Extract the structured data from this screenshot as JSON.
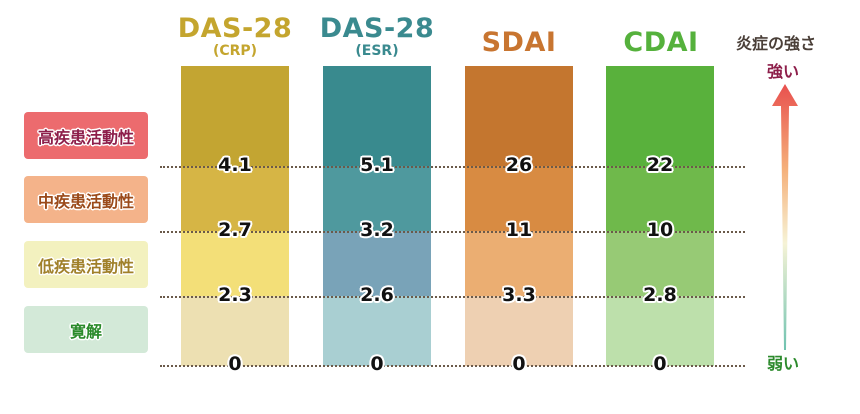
{
  "columns": [
    {
      "title": "DAS-28",
      "subtitle": "(CRP)",
      "title_color": "#c4a52e",
      "thresholds": [
        "4.1",
        "2.7",
        "2.3",
        "0"
      ],
      "segment_colors": [
        "#c3a532",
        "#d6b545",
        "#f3df78",
        "#ede0b2"
      ]
    },
    {
      "title": "DAS-28",
      "subtitle": "(ESR)",
      "title_color": "#3a8a8f",
      "thresholds": [
        "5.1",
        "3.2",
        "2.6",
        "0"
      ],
      "segment_colors": [
        "#398a8e",
        "#4f999e",
        "#79a3b8",
        "#a9cfd2"
      ]
    },
    {
      "title": "SDAI",
      "subtitle": "",
      "title_color": "#c87530",
      "thresholds": [
        "26",
        "11",
        "3.3",
        "0"
      ],
      "segment_colors": [
        "#c4762f",
        "#d88b42",
        "#ebae72",
        "#eed0b2"
      ]
    },
    {
      "title": "CDAI",
      "subtitle": "",
      "title_color": "#55b13c",
      "thresholds": [
        "22",
        "10",
        "2.8",
        "0"
      ],
      "segment_colors": [
        "#59b13c",
        "#6fb94b",
        "#97ca75",
        "#bde0ab"
      ]
    }
  ],
  "categories": [
    {
      "label": "高疾患活動性",
      "bg": "#ec6b6e",
      "color": "#8d1e4a"
    },
    {
      "label": "中疾患活動性",
      "bg": "#f4b38a",
      "color": "#9b4a1a"
    },
    {
      "label": "低疾患活動性",
      "bg": "#f3f1bf",
      "color": "#a0802a"
    },
    {
      "label": "寛解",
      "bg": "#d3e9d8",
      "color": "#2a8a2a"
    }
  ],
  "axis": {
    "title": "炎症の強さ",
    "top_label": "強い",
    "bottom_label": "弱い",
    "arrow_icon": "gradient-up-arrow"
  }
}
